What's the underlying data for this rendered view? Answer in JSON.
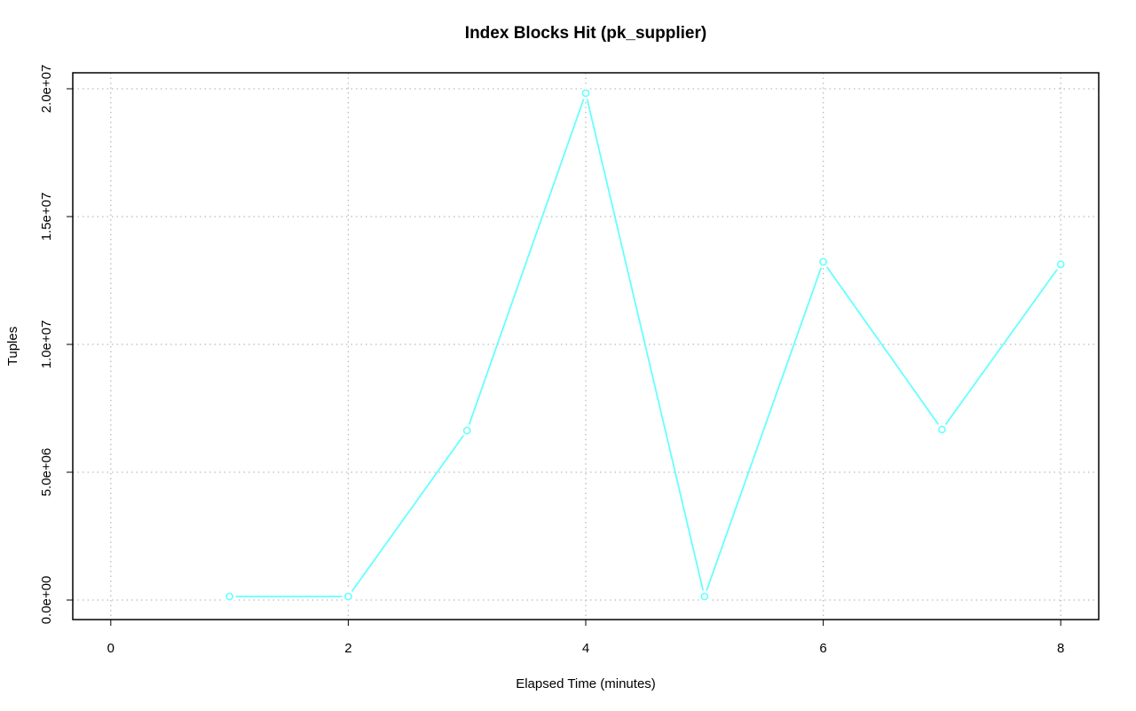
{
  "chart_data": {
    "type": "line",
    "title": "Index Blocks Hit (pk_supplier)",
    "x_label": "Elapsed Time (minutes)",
    "y_label": "Tuples",
    "x": [
      1,
      2,
      3,
      4,
      5,
      6,
      7,
      8
    ],
    "values": [
      140000,
      140000,
      6630000,
      19830000,
      140000,
      13230000,
      6670000,
      13130000
    ],
    "color": "#66ffff",
    "xlim": [
      -0.32,
      8.32
    ],
    "xticks": [
      0,
      2,
      4,
      6,
      8
    ],
    "ylim": [
      -764000,
      20625000
    ],
    "yticks": [
      {
        "value": 0,
        "label": "0.0e+00"
      },
      {
        "value": 5000000,
        "label": "5.0e+06"
      },
      {
        "value": 10000000,
        "label": "1.0e+07"
      },
      {
        "value": 15000000,
        "label": "1.5e+07"
      },
      {
        "value": 20000000,
        "label": "2.0e+07"
      }
    ],
    "grid": true
  }
}
